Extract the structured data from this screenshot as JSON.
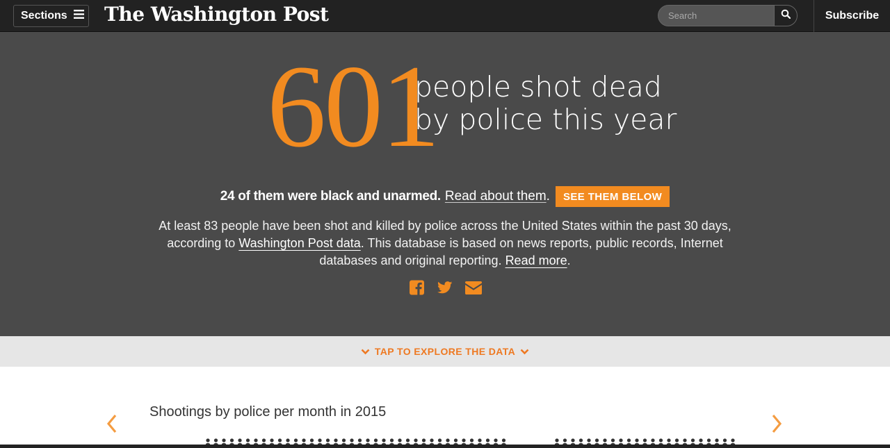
{
  "nav": {
    "sections_label": "Sections",
    "logo_text": "The Washington Post",
    "search_placeholder": "Search",
    "subscribe_label": "Subscribe"
  },
  "hero": {
    "number": "601",
    "line1": "people shot dead",
    "line2": "by police this year"
  },
  "unarmed": {
    "stat": "24 of them were black and unarmed.",
    "link": "Read about them",
    "after_link": ".",
    "button": "SEE THEM BELOW"
  },
  "description": {
    "part1": "At least 83 people have been shot and killed by police across the United States within the past 30 days, according to ",
    "link1": "Washington Post data",
    "part2": ". This database is based on news reports, public records, Internet databases and original reporting. ",
    "link2": "Read more",
    "part3": "."
  },
  "social": {
    "icons": [
      "facebook-icon",
      "twitter-icon",
      "email-icon"
    ]
  },
  "explore": {
    "label": "TAP TO EXPLORE THE DATA"
  },
  "chart": {
    "title": "Shootings by police per month in 2015"
  },
  "colors": {
    "accent": "#f28b20",
    "hero_bg": "#4a4a4a",
    "nav_bg": "#222222",
    "explore_bg": "#e6e6e6"
  }
}
